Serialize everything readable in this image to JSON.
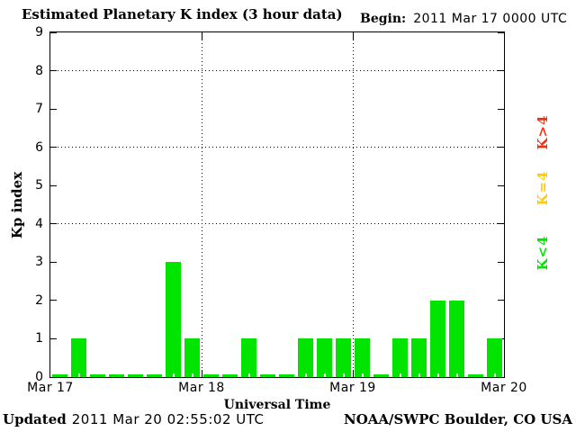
{
  "title": "Estimated Planetary K index (3 hour data)",
  "begin": {
    "label": "Begin:",
    "value": "2011 Mar 17 0000 UTC"
  },
  "footer": {
    "updated_label": "Updated",
    "updated_value": "2011 Mar 20 02:55:02 UTC",
    "credit": "NOAA/SWPC Boulder, CO USA"
  },
  "chart_data": {
    "type": "bar",
    "title": "Estimated Planetary K index (3 hour data)",
    "xlabel": "Universal Time",
    "ylabel": "Kp index",
    "ylim": [
      0,
      9
    ],
    "yticks": [
      0,
      1,
      2,
      3,
      4,
      5,
      6,
      7,
      8,
      9
    ],
    "grid_y": [
      4,
      6,
      8
    ],
    "grid_on": true,
    "interval_hours": 3,
    "x_day_labels": [
      "Mar 17",
      "Mar 18",
      "Mar 19",
      "Mar 20"
    ],
    "day_gridline_labels": [
      "Mar 18",
      "Mar 19"
    ],
    "series": [
      {
        "day": "Mar 17",
        "values": [
          0,
          1,
          0,
          0,
          0,
          0,
          3,
          1
        ]
      },
      {
        "day": "Mar 18",
        "values": [
          0,
          0,
          1,
          0,
          0,
          1,
          1,
          1
        ]
      },
      {
        "day": "Mar 19",
        "values": [
          1,
          0,
          1,
          1,
          2,
          2,
          0,
          1
        ]
      }
    ],
    "bar_color": "#00e400",
    "axis_color": "#000000",
    "legend_position": "right",
    "legend": [
      {
        "label": "K>4",
        "color": "#ee3311"
      },
      {
        "label": "K=4",
        "color": "#ffcc00"
      },
      {
        "label": "K<4",
        "color": "#00e400"
      }
    ]
  }
}
